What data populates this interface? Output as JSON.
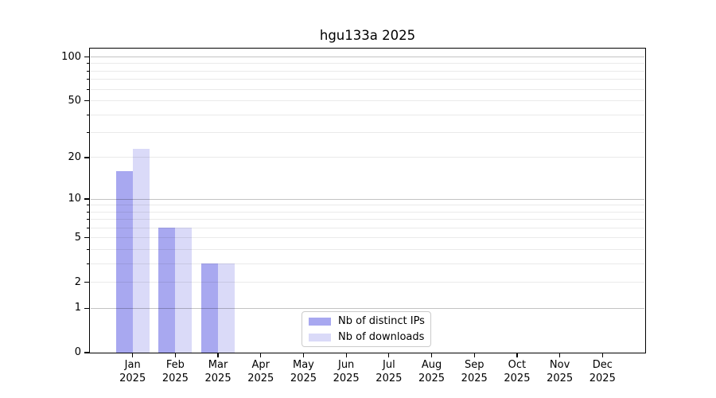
{
  "figure": {
    "title": "hgu133a 2025"
  },
  "legend": {
    "items": [
      {
        "label": "Nb of distinct IPs"
      },
      {
        "label": "Nb of downloads"
      }
    ]
  },
  "chart_data": {
    "type": "bar",
    "title": "hgu133a 2025",
    "categories": [
      "Jan 2025",
      "Feb 2025",
      "Mar 2025",
      "Apr 2025",
      "May 2025",
      "Jun 2025",
      "Jul 2025",
      "Aug 2025",
      "Sep 2025",
      "Oct 2025",
      "Nov 2025",
      "Dec 2025"
    ],
    "series": [
      {
        "name": "Nb of distinct IPs",
        "color": "#a8a8f0",
        "values": [
          16,
          6,
          3,
          0,
          0,
          0,
          0,
          0,
          0,
          0,
          0,
          0
        ]
      },
      {
        "name": "Nb of downloads",
        "color": "#dadaf8",
        "values": [
          23,
          6,
          3,
          0,
          0,
          0,
          0,
          0,
          0,
          0,
          0,
          0
        ]
      }
    ],
    "xlabel": "",
    "ylabel": "",
    "y_scale": "log10(1+x)",
    "y_tick_labels": [
      0,
      1,
      2,
      5,
      10,
      20,
      50,
      100
    ],
    "y_major_gridlines": [
      1,
      10,
      100
    ],
    "y_minor_gridlines": [
      2,
      3,
      4,
      5,
      6,
      7,
      8,
      9,
      20,
      30,
      40,
      50,
      60,
      70,
      80,
      90
    ],
    "ylim": [
      0,
      114
    ],
    "grid": "both",
    "legend_position": "lower center"
  }
}
